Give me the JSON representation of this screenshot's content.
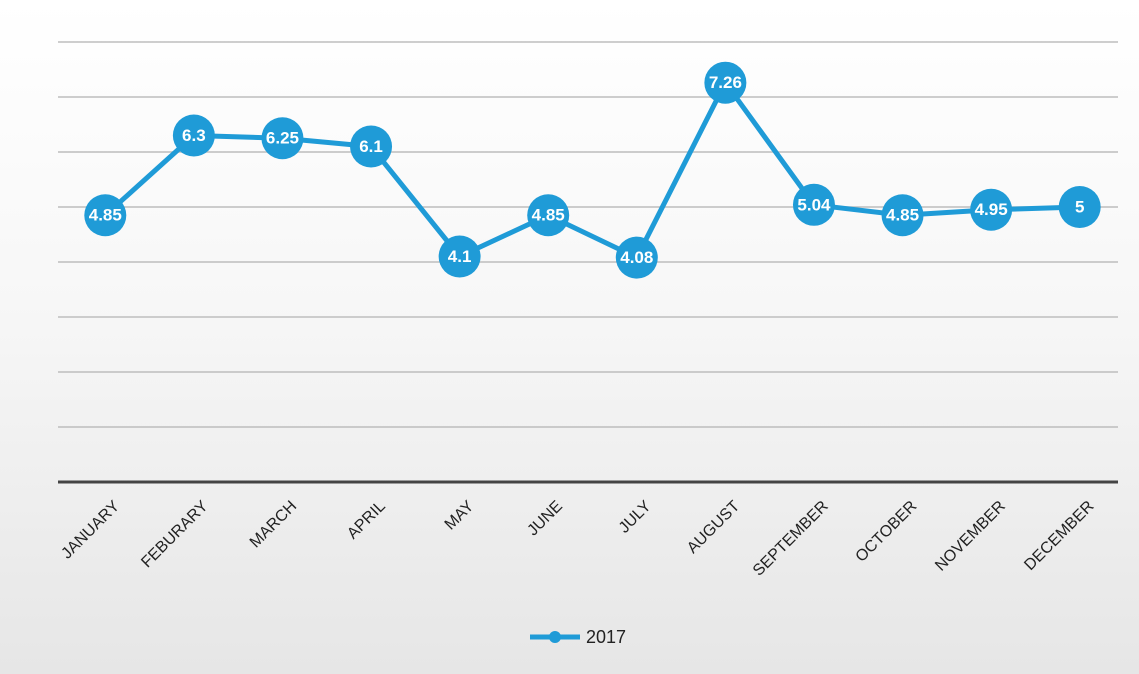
{
  "chart_data": {
    "type": "line",
    "categories": [
      "JANUARY",
      "FEBURARY",
      "MARCH",
      "APRIL",
      "MAY",
      "JUNE",
      "JULY",
      "AUGUST",
      "SEPTEMBER",
      "OCTOBER",
      "NOVEMBER",
      "DECEMBER"
    ],
    "series": [
      {
        "name": "2017",
        "color": "#1f9bd7",
        "values": [
          4.85,
          6.3,
          6.25,
          6.1,
          4.1,
          4.85,
          4.08,
          7.26,
          5.04,
          4.85,
          4.95,
          5
        ]
      }
    ],
    "ylim": [
      0,
      8
    ],
    "yticks": [
      0,
      1,
      2,
      3,
      4,
      5,
      6,
      7,
      8
    ],
    "grid": true,
    "legend": "bottom"
  }
}
